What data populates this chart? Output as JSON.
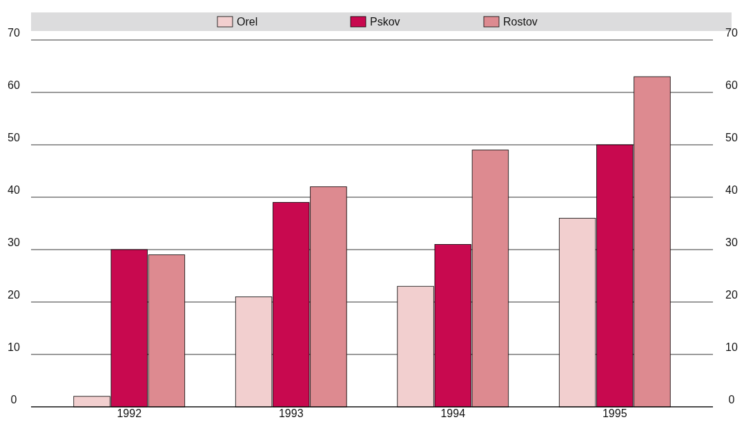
{
  "chart_data": {
    "type": "bar",
    "categories": [
      "1992",
      "1993",
      "1994",
      "1995"
    ],
    "series": [
      {
        "name": "Orel",
        "color": "#f2cfcf",
        "values": [
          2,
          21,
          23,
          36
        ]
      },
      {
        "name": "Pskov",
        "color": "#c8094f",
        "values": [
          30,
          39,
          31,
          50
        ]
      },
      {
        "name": "Rostov",
        "color": "#dd8a90",
        "values": [
          29,
          42,
          49,
          63
        ]
      }
    ],
    "ylim": [
      0,
      70
    ],
    "yticks": [
      0,
      10,
      20,
      30,
      40,
      50,
      60,
      70
    ],
    "y2lim": [
      0,
      70
    ],
    "y2ticks": [
      0,
      10,
      20,
      30,
      40,
      50,
      60,
      70
    ],
    "grid": "y",
    "legend": "top"
  }
}
